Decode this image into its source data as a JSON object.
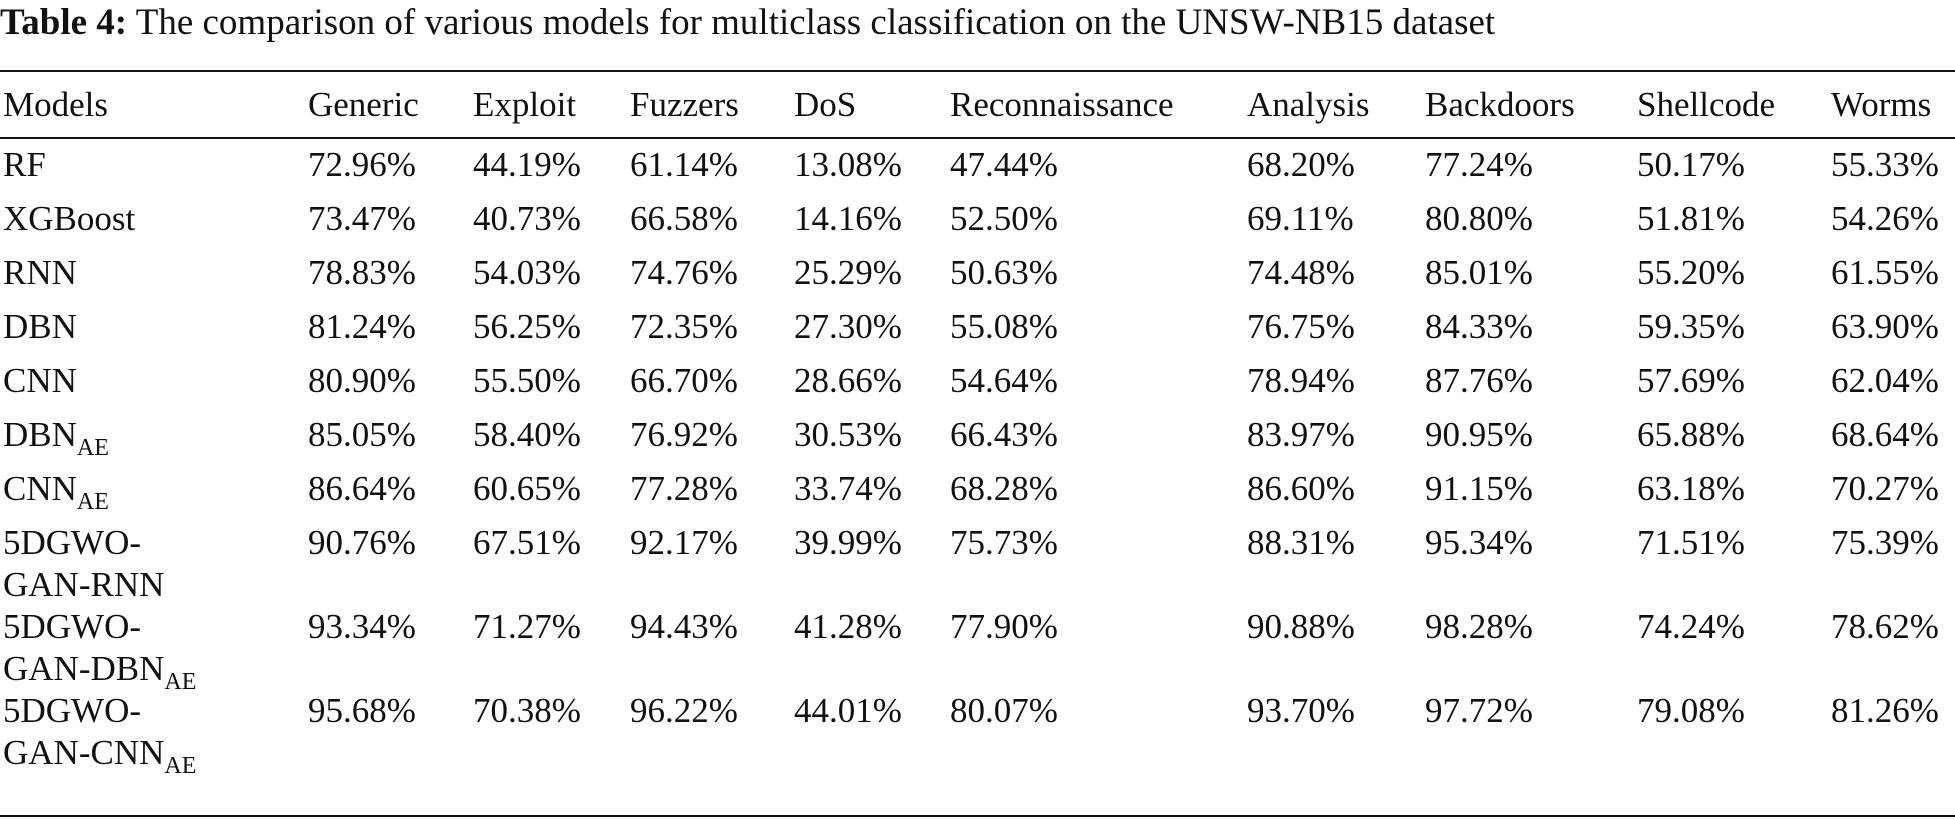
{
  "caption": {
    "label": "Table 4:",
    "text": " The comparison of various models for multiclass classification on the UNSW-NB15 dataset"
  },
  "table": {
    "headers": [
      "Models",
      "Generic",
      "Exploit",
      "Fuzzers",
      "DoS",
      "Reconnaissance",
      "Analysis",
      "Backdoors",
      "Shellcode",
      "Worms"
    ],
    "rows": [
      {
        "name": "RF",
        "sub": "",
        "name2": "",
        "sub2": "",
        "values": [
          "72.96%",
          "44.19%",
          "61.14%",
          "13.08%",
          "47.44%",
          "68.20%",
          "77.24%",
          "50.17%",
          "55.33%"
        ]
      },
      {
        "name": "XGBoost",
        "sub": "",
        "name2": "",
        "sub2": "",
        "values": [
          "73.47%",
          "40.73%",
          "66.58%",
          "14.16%",
          "52.50%",
          "69.11%",
          "80.80%",
          "51.81%",
          "54.26%"
        ]
      },
      {
        "name": "RNN",
        "sub": "",
        "name2": "",
        "sub2": "",
        "values": [
          "78.83%",
          "54.03%",
          "74.76%",
          "25.29%",
          "50.63%",
          "74.48%",
          "85.01%",
          "55.20%",
          "61.55%"
        ]
      },
      {
        "name": "DBN",
        "sub": "",
        "name2": "",
        "sub2": "",
        "values": [
          "81.24%",
          "56.25%",
          "72.35%",
          "27.30%",
          "55.08%",
          "76.75%",
          "84.33%",
          "59.35%",
          "63.90%"
        ]
      },
      {
        "name": "CNN",
        "sub": "",
        "name2": "",
        "sub2": "",
        "values": [
          "80.90%",
          "55.50%",
          "66.70%",
          "28.66%",
          "54.64%",
          "78.94%",
          "87.76%",
          "57.69%",
          "62.04%"
        ]
      },
      {
        "name": "DBN",
        "sub": "AE",
        "name2": "",
        "sub2": "",
        "values": [
          "85.05%",
          "58.40%",
          "76.92%",
          "30.53%",
          "66.43%",
          "83.97%",
          "90.95%",
          "65.88%",
          "68.64%"
        ]
      },
      {
        "name": "CNN",
        "sub": "AE",
        "name2": "",
        "sub2": "",
        "values": [
          "86.64%",
          "60.65%",
          "77.28%",
          "33.74%",
          "68.28%",
          "86.60%",
          "91.15%",
          "63.18%",
          "70.27%"
        ]
      },
      {
        "name": "5DGWO-",
        "sub": "",
        "name2": "GAN-RNN",
        "sub2": "",
        "values": [
          "90.76%",
          "67.51%",
          "92.17%",
          "39.99%",
          "75.73%",
          "88.31%",
          "95.34%",
          "71.51%",
          "75.39%"
        ]
      },
      {
        "name": "5DGWO-",
        "sub": "",
        "name2": "GAN-DBN",
        "sub2": "AE",
        "values": [
          "93.34%",
          "71.27%",
          "94.43%",
          "41.28%",
          "77.90%",
          "90.88%",
          "98.28%",
          "74.24%",
          "78.62%"
        ]
      },
      {
        "name": "5DGWO-",
        "sub": "",
        "name2": "GAN-CNN",
        "sub2": "AE",
        "values": [
          "95.68%",
          "70.38%",
          "96.22%",
          "44.01%",
          "80.07%",
          "93.70%",
          "97.72%",
          "79.08%",
          "81.26%"
        ]
      }
    ]
  }
}
